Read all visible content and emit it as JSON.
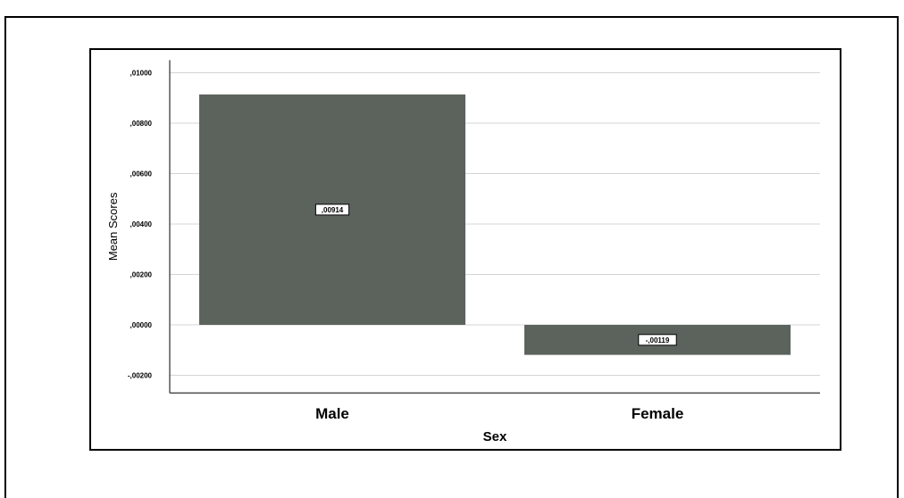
{
  "chart_data": {
    "type": "bar",
    "categories": [
      "Male",
      "Female"
    ],
    "values": [
      0.00914,
      -0.00119
    ],
    "data_labels": [
      ",00914",
      "-,00119"
    ],
    "xlabel": "Sex",
    "ylabel": "Mean Scores",
    "ylim": [
      -0.0027,
      0.0105
    ],
    "yticks": [
      -0.002,
      0.0,
      0.002,
      0.004,
      0.006,
      0.008,
      0.01
    ],
    "ytick_labels": [
      "-,00200",
      ",00000",
      ",00200",
      ",00400",
      ",00600",
      ",00800",
      ",01000"
    ],
    "grid": true,
    "bar_color": "#5c635d",
    "grid_color": "#d4d4d4"
  }
}
